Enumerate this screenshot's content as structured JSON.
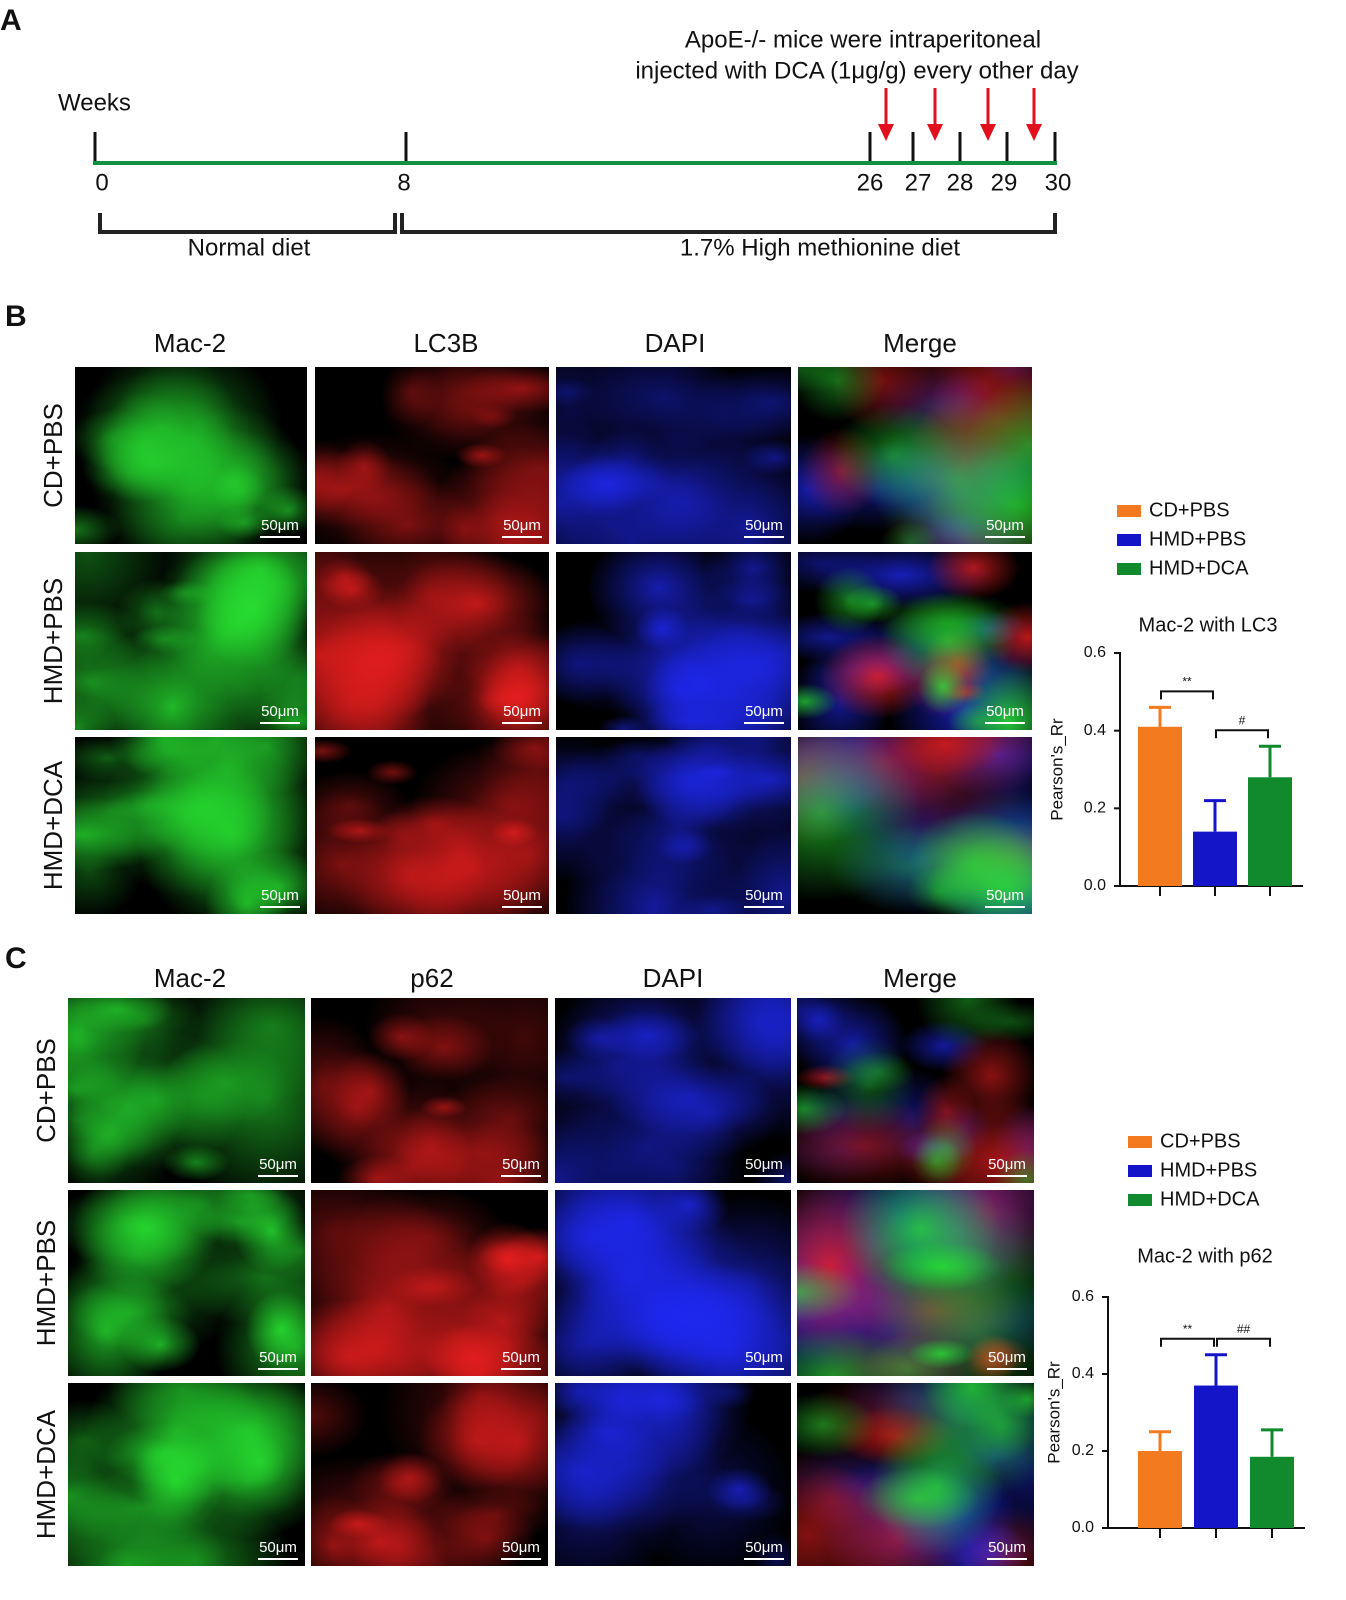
{
  "panel_a": {
    "label": "A",
    "axis_label": "Weeks",
    "weeks": [
      0,
      8,
      26,
      27,
      28,
      29,
      30
    ],
    "annotation": [
      "ApoE-/- mice  were intraperitoneal",
      "injected with DCA (1μg/g) every other day"
    ],
    "phases": [
      "Normal  diet",
      "1.7% High methionine diet"
    ]
  },
  "panel_b": {
    "label": "B",
    "columns": [
      "Mac-2",
      "LC3B",
      "DAPI",
      "Merge"
    ],
    "rows": [
      "CD+PBS",
      "HMD+PBS",
      "HMD+DCA"
    ],
    "scale_bar": "50μm"
  },
  "panel_c": {
    "label": "C",
    "columns": [
      "Mac-2",
      "p62",
      "DAPI",
      "Merge"
    ],
    "rows": [
      "CD+PBS",
      "HMD+PBS",
      "HMD+DCA"
    ],
    "scale_bar": "50μm"
  },
  "chart_data": [
    {
      "type": "bar",
      "title": "Mac-2 with LC3",
      "ylabel": "Pearson's_Rr",
      "categories": [
        null
      ],
      "series": [
        {
          "name": "CD+PBS",
          "color": "#f47a20",
          "values": [
            0.41
          ],
          "errors": [
            0.05
          ]
        },
        {
          "name": "HMD+PBS",
          "color": "#1414c8",
          "values": [
            0.14
          ],
          "errors": [
            0.08
          ]
        },
        {
          "name": "HMD+DCA",
          "color": "#108a2c",
          "values": [
            0.28
          ],
          "errors": [
            0.08
          ]
        }
      ],
      "ylim": [
        0,
        0.6
      ],
      "yticks": [
        {
          "value": 0,
          "label": "0.0"
        },
        0.2,
        0.4,
        0.6
      ],
      "annotations": [
        "**",
        "#"
      ]
    },
    {
      "type": "bar",
      "title": "Mac-2 with p62",
      "ylabel": "Pearson's_Rr",
      "categories": [
        null
      ],
      "series": [
        {
          "name": "CD+PBS",
          "color": "#f47a20",
          "values": [
            0.2
          ],
          "errors": [
            0.05
          ]
        },
        {
          "name": "HMD+PBS",
          "color": "#1414c8",
          "values": [
            0.37
          ],
          "errors": [
            0.08
          ]
        },
        {
          "name": "HMD+DCA",
          "color": "#108a2c",
          "values": [
            0.185
          ],
          "errors": [
            0.07
          ]
        }
      ],
      "ylim": [
        0,
        0.6
      ],
      "yticks": [
        {
          "value": 0,
          "label": "0.0"
        },
        0.2,
        0.4,
        0.6
      ],
      "annotations": [
        "**",
        "##"
      ]
    }
  ]
}
